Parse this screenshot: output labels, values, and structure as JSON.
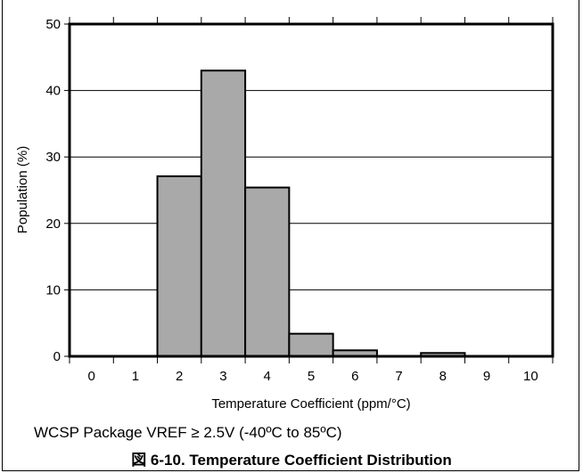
{
  "chart_data": {
    "type": "bar",
    "categories": [
      "0",
      "1",
      "2",
      "3",
      "4",
      "5",
      "6",
      "7",
      "8",
      "9",
      "10"
    ],
    "values": [
      0,
      0,
      27.1,
      43.0,
      25.4,
      3.4,
      0.9,
      0,
      0.5,
      0,
      0
    ],
    "xlabel": "Temperature Coefficient (ppm/°C)",
    "ylabel": "Population (%)",
    "ylim": [
      0,
      50
    ],
    "yticks": [
      "0",
      "10",
      "20",
      "30",
      "40",
      "50"
    ],
    "grid": true,
    "bar_color": "#a9a9a9"
  },
  "note": "WCSP Package VREF ≥ 2.5V (-40ºC to 85ºC)",
  "caption": "図 6-10. Temperature Coefficient Distribution"
}
